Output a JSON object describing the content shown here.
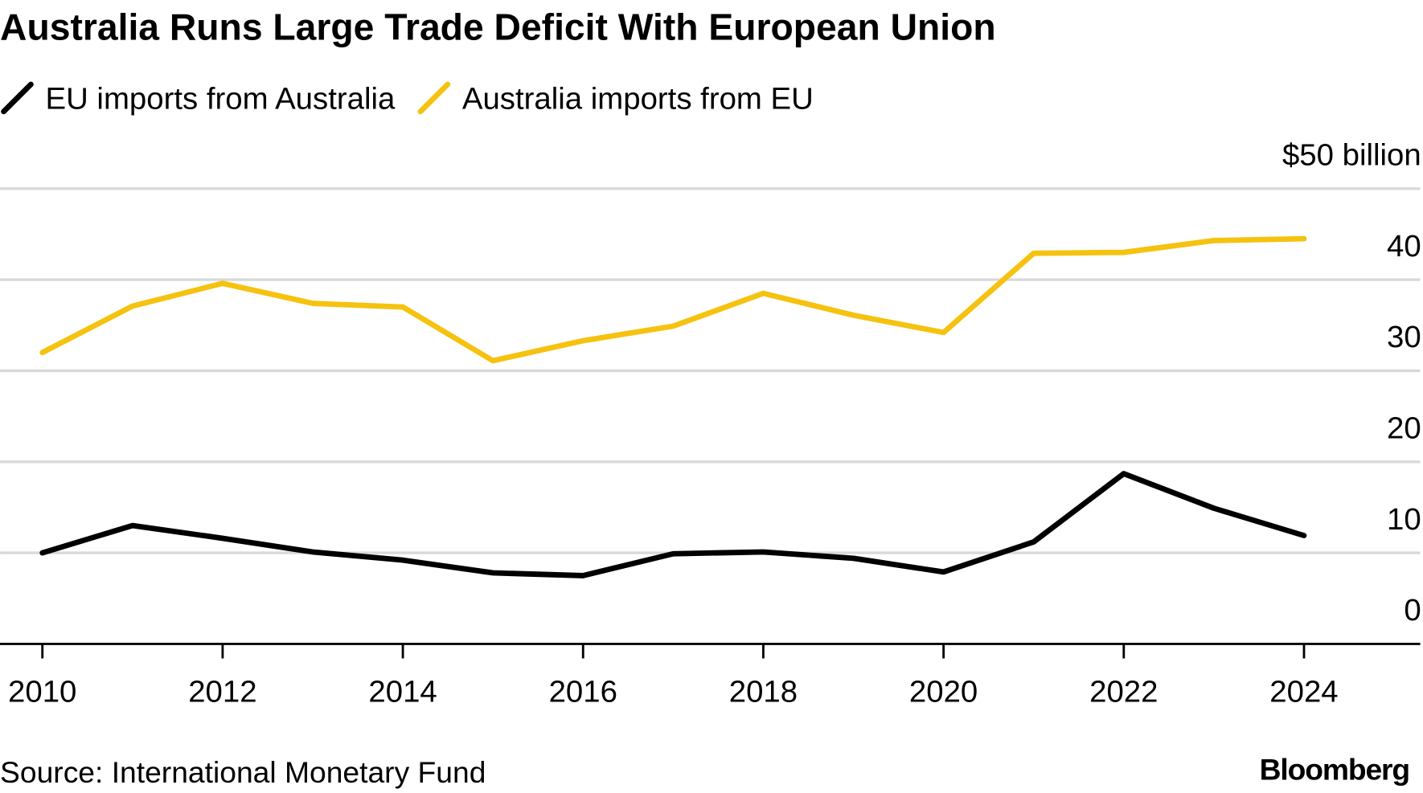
{
  "chart_data": {
    "type": "line",
    "title": "Australia Runs Large Trade Deficit With European Union",
    "source": "Source: International Monetary Fund",
    "credit": "Bloomberg",
    "x": [
      2010,
      2011,
      2012,
      2013,
      2014,
      2015,
      2016,
      2017,
      2018,
      2019,
      2020,
      2021,
      2022,
      2023,
      2024
    ],
    "series": [
      {
        "name": "EU imports from Australia",
        "color": "#000000",
        "values": [
          10.0,
          13.0,
          11.6,
          10.1,
          9.2,
          7.8,
          7.5,
          9.9,
          10.1,
          9.4,
          7.9,
          11.2,
          18.7,
          14.9,
          11.9
        ]
      },
      {
        "name": "Australia imports from EU",
        "color": "#f5c20f",
        "values": [
          32.0,
          37.1,
          39.6,
          37.4,
          37.0,
          31.1,
          33.3,
          34.9,
          38.5,
          36.1,
          34.2,
          42.9,
          43.0,
          44.3,
          44.5
        ]
      }
    ],
    "xlim": [
      2009.53,
      2025.29
    ],
    "xticks": [
      2010,
      2012,
      2014,
      2016,
      2018,
      2020,
      2022,
      2024
    ],
    "ylim": [
      0,
      50
    ],
    "yticks": [
      0,
      10,
      20,
      30,
      40,
      {
        "value": 50,
        "label": "$50 billion"
      }
    ],
    "grid": true
  }
}
